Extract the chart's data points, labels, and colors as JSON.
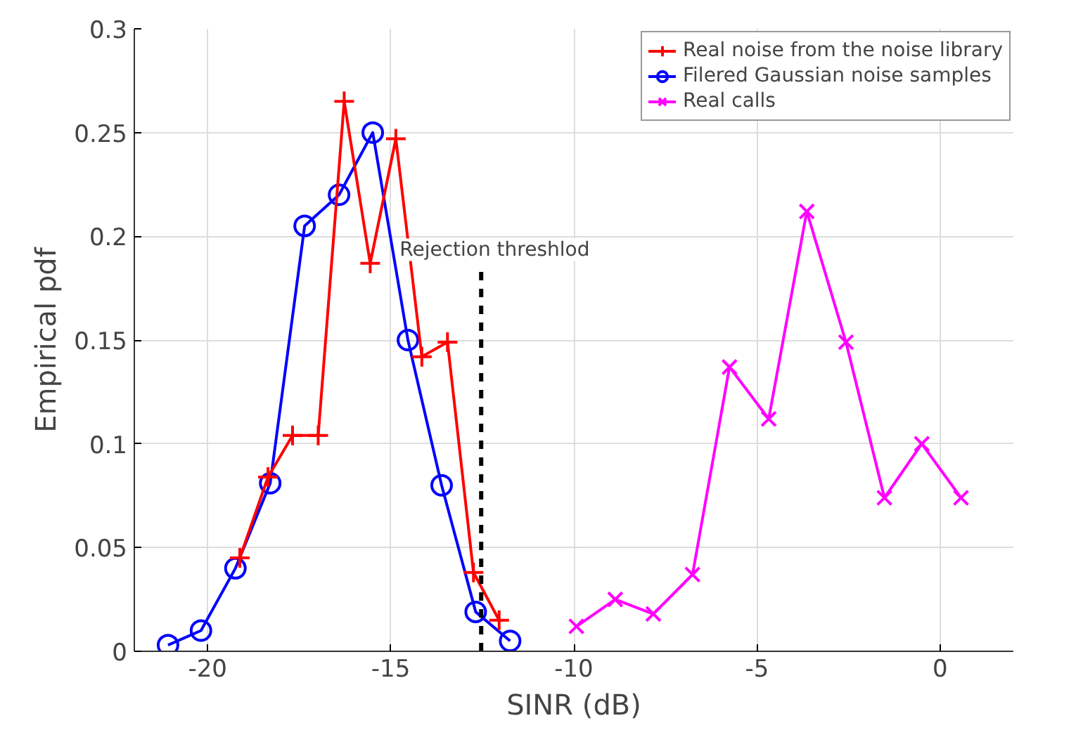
{
  "chart_data": {
    "type": "line",
    "xlabel": "SINR (dB)",
    "ylabel": "Empirical pdf",
    "xlim": [
      -22,
      2
    ],
    "ylim": [
      0,
      0.3
    ],
    "xticks": [
      -20,
      -15,
      -10,
      -5,
      0
    ],
    "yticks": [
      0,
      0.05,
      0.1,
      0.15,
      0.2,
      0.25,
      0.3
    ],
    "grid": true,
    "legend": "top right",
    "line_style": "solid",
    "series": [
      {
        "name": "Real noise from the noise library",
        "color": "#ff0000",
        "marker": "cross",
        "x": [
          -19.12,
          -18.35,
          -17.68,
          -16.98,
          -16.27,
          -15.56,
          -14.86,
          -14.15,
          -13.45,
          -12.74,
          -12.04
        ],
        "values": [
          0.045,
          0.084,
          0.104,
          0.104,
          0.265,
          0.187,
          0.247,
          0.142,
          0.149,
          0.038,
          0.015
        ]
      },
      {
        "name": "Filered Gaussian noise samples",
        "color": "#0000ff",
        "marker": "circle",
        "x": [
          -21.08,
          -20.18,
          -19.24,
          -18.29,
          -17.35,
          -16.41,
          -15.49,
          -14.53,
          -13.61,
          -12.68,
          -11.74
        ],
        "values": [
          0.003,
          0.01,
          0.04,
          0.081,
          0.205,
          0.22,
          0.25,
          0.15,
          0.08,
          0.019,
          0.005
        ]
      },
      {
        "name": "Real calls",
        "color": "#ff00ff",
        "marker": "x",
        "x": [
          -9.93,
          -8.87,
          -7.83,
          -6.76,
          -5.75,
          -4.68,
          -3.64,
          -2.57,
          -1.52,
          -0.5,
          0.57
        ],
        "values": [
          0.012,
          0.025,
          0.018,
          0.037,
          0.137,
          0.112,
          0.212,
          0.149,
          0.074,
          0.1,
          0.074
        ]
      }
    ],
    "ref_lines": [
      {
        "axis": "x",
        "value": -12.53,
        "label": "Rejection threshlod",
        "color": "#000000",
        "line_style": "dashed"
      }
    ]
  }
}
